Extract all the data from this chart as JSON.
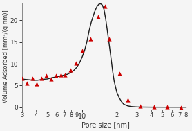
{
  "xlabel": "Pore size [nm]",
  "ylabel": "Volume Adsorbed [mm³/(g nm)]",
  "xlim": [
    3,
    85
  ],
  "ylim": [
    -0.5,
    24
  ],
  "yticks": [
    0,
    5,
    10,
    15,
    20
  ],
  "background_color": "#f5f5f5",
  "marker_color": "#cc0000",
  "line_color": "#1a1a1a",
  "scatter_x": [
    3.0,
    3.3,
    3.7,
    4.05,
    4.45,
    4.9,
    5.35,
    5.9,
    6.5,
    7.1,
    7.9,
    8.8,
    10.0,
    11.8,
    13.8,
    15.8,
    17.2,
    21.0,
    25.0,
    32.0,
    42.0,
    55.0,
    72.0
  ],
  "scatter_y": [
    6.6,
    5.6,
    6.6,
    5.3,
    6.6,
    7.3,
    6.5,
    7.3,
    7.5,
    7.5,
    8.5,
    10.2,
    13.0,
    15.8,
    20.9,
    23.3,
    15.7,
    7.8,
    1.7,
    0.3,
    0.1,
    0.05,
    0.02
  ],
  "curve_x": [
    3.0,
    3.2,
    3.5,
    3.8,
    4.1,
    4.5,
    5.0,
    5.5,
    6.0,
    6.5,
    7.0,
    7.5,
    8.0,
    8.5,
    9.0,
    9.5,
    10.0,
    10.5,
    11.0,
    11.5,
    12.0,
    12.5,
    13.0,
    13.5,
    14.0,
    14.5,
    15.0,
    15.5,
    16.0,
    16.5,
    17.0,
    17.5,
    18.0,
    18.5,
    19.0,
    20.0,
    21.0,
    22.0,
    23.0,
    25.0,
    27.0,
    30.0,
    34.0,
    40.0,
    50.0,
    65.0,
    80.0
  ],
  "curve_y": [
    6.5,
    6.4,
    6.3,
    6.2,
    6.2,
    6.4,
    6.5,
    6.8,
    7.0,
    7.2,
    7.4,
    7.6,
    8.0,
    8.5,
    9.2,
    10.2,
    11.5,
    13.0,
    15.0,
    17.5,
    19.5,
    21.0,
    22.3,
    23.2,
    23.7,
    23.8,
    23.5,
    22.5,
    20.5,
    18.0,
    15.5,
    13.0,
    10.5,
    8.0,
    6.0,
    3.5,
    2.2,
    1.3,
    0.7,
    0.3,
    0.15,
    0.07,
    0.04,
    0.02,
    0.01,
    0.005,
    0.002
  ],
  "major_xticks": [
    10
  ],
  "major_xlabels": [
    "10"
  ],
  "minor_xticks": [
    3,
    4,
    5,
    6,
    7,
    8,
    9,
    20,
    30,
    40,
    50,
    60,
    70,
    80
  ],
  "minor_xlabels": [
    "3",
    "4",
    "5",
    "6",
    "7",
    "8",
    "9",
    "2",
    "3",
    "4",
    "5",
    "6",
    "7",
    "8"
  ]
}
